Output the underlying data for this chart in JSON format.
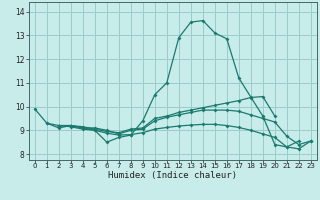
{
  "xlabel": "Humidex (Indice chaleur)",
  "bg_color": "#c8ecea",
  "grid_color": "#99cccc",
  "line_color": "#1a7a6e",
  "xlim": [
    -0.5,
    23.5
  ],
  "ylim": [
    7.75,
    14.4
  ],
  "xticks": [
    0,
    1,
    2,
    3,
    4,
    5,
    6,
    7,
    8,
    9,
    10,
    11,
    12,
    13,
    14,
    15,
    16,
    17,
    18,
    19,
    20,
    21,
    22,
    23
  ],
  "yticks": [
    8,
    9,
    10,
    11,
    12,
    13,
    14
  ],
  "curves": [
    {
      "x": [
        0,
        1,
        2,
        3,
        4,
        5,
        6,
        7,
        8,
        9,
        10,
        11,
        12,
        13,
        14,
        15,
        16,
        17,
        18,
        19,
        20,
        21,
        22
      ],
      "y": [
        9.9,
        9.3,
        9.1,
        9.2,
        9.1,
        9.0,
        8.5,
        8.7,
        8.8,
        9.4,
        10.5,
        11.0,
        12.9,
        13.55,
        13.62,
        13.1,
        12.85,
        11.2,
        10.4,
        9.6,
        8.4,
        8.3,
        8.55
      ]
    },
    {
      "x": [
        2,
        3,
        4,
        5,
        6,
        7,
        8,
        9,
        10,
        11,
        12,
        13,
        14,
        15,
        16,
        17,
        18,
        19,
        20,
        21,
        22,
        23
      ],
      "y": [
        9.2,
        9.2,
        9.1,
        9.1,
        9.0,
        8.85,
        9.0,
        9.05,
        9.4,
        9.55,
        9.65,
        9.75,
        9.85,
        9.85,
        9.85,
        9.8,
        9.65,
        9.5,
        9.35,
        8.75,
        8.4,
        8.55
      ]
    },
    {
      "x": [
        1,
        2,
        3,
        4,
        5,
        6,
        7,
        8,
        9,
        10,
        11,
        12,
        13,
        14,
        15,
        16,
        17,
        18,
        19,
        20
      ],
      "y": [
        9.3,
        9.2,
        9.2,
        9.15,
        9.05,
        8.95,
        8.9,
        9.05,
        9.1,
        9.5,
        9.6,
        9.75,
        9.85,
        9.95,
        10.05,
        10.15,
        10.25,
        10.38,
        10.42,
        9.6
      ]
    },
    {
      "x": [
        2,
        3,
        4,
        5,
        6,
        7,
        8,
        9,
        10,
        11,
        12,
        13,
        14,
        15,
        16,
        17,
        18,
        19,
        20,
        21,
        22,
        23
      ],
      "y": [
        9.2,
        9.15,
        9.05,
        9.0,
        8.88,
        8.8,
        8.82,
        8.9,
        9.05,
        9.12,
        9.18,
        9.22,
        9.25,
        9.25,
        9.2,
        9.12,
        9.0,
        8.85,
        8.7,
        8.3,
        8.22,
        8.55
      ]
    }
  ]
}
